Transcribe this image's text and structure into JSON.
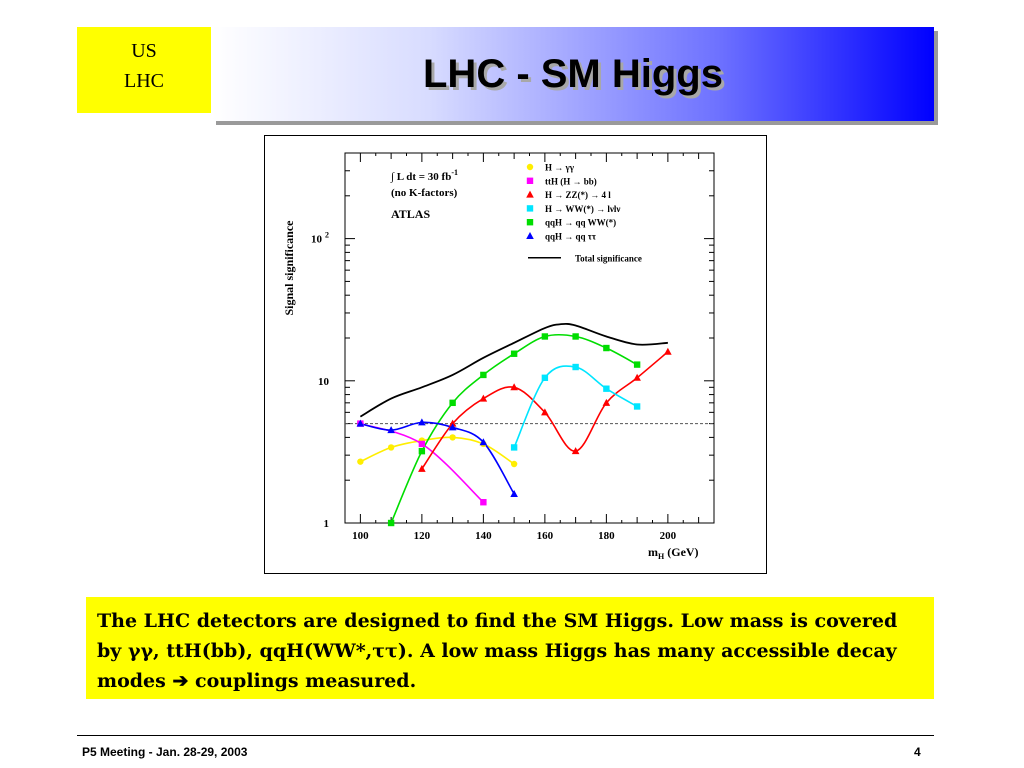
{
  "logo": {
    "line1": "US",
    "line2": "LHC"
  },
  "slide": {
    "title": "LHC -  SM Higgs"
  },
  "caption": "The LHC detectors are designed to find the SM Higgs. Low mass is covered by γγ, ttH(bb), qqH(WW*,ττ).  A low mass Higgs has many accessible decay modes ➔ couplings measured.",
  "footer": {
    "left": "P5 Meeting -  Jan. 28-29, 2003",
    "right": "4"
  },
  "chart_data": {
    "type": "line",
    "title": "",
    "xlabel": "m_H (GeV)",
    "ylabel": "Signal significance",
    "xlim": [
      95,
      215
    ],
    "ylim": [
      1,
      400
    ],
    "yscale": "log",
    "x_ticks": [
      100,
      120,
      140,
      160,
      180,
      200
    ],
    "y_tick_labels": [
      {
        "value": 1,
        "label": "1"
      },
      {
        "value": 10,
        "label": "10"
      },
      {
        "value": 100,
        "label": "10",
        "sup": "2"
      }
    ],
    "reference_line": {
      "y": 5,
      "style": "dashed"
    },
    "annotations": [
      {
        "text": "∫ L dt = 30 fb",
        "sup": "-1"
      },
      {
        "text": "(no K-factors)"
      },
      {
        "text": "ATLAS"
      }
    ],
    "legend_placement": "top-right",
    "series": [
      {
        "name": "H → γγ",
        "color": "#ffee00",
        "marker": "circle",
        "x": [
          100,
          110,
          120,
          130,
          140,
          150
        ],
        "y": [
          2.7,
          3.4,
          3.8,
          4.0,
          3.6,
          2.6
        ]
      },
      {
        "name": "ttH (H → bb)",
        "color": "#ff00ff",
        "marker": "square",
        "x": [
          100,
          120,
          140
        ],
        "y": [
          5.0,
          3.6,
          1.4
        ]
      },
      {
        "name": "H → ZZ(*) → 4 l",
        "color": "#ff0000",
        "marker": "triangle",
        "x": [
          120,
          130,
          140,
          150,
          160,
          170,
          180,
          190,
          200
        ],
        "y": [
          2.4,
          5.0,
          7.5,
          9.0,
          6.0,
          3.2,
          7.0,
          10.5,
          16.0
        ]
      },
      {
        "name": "H → WW(*) → lνlν",
        "color": "#00e5ff",
        "marker": "square",
        "x": [
          150,
          160,
          170,
          180,
          190
        ],
        "y": [
          3.4,
          10.5,
          12.5,
          8.8,
          6.6
        ]
      },
      {
        "name": "qqH → qq WW(*)",
        "color": "#00dd00",
        "marker": "square",
        "x": [
          110,
          120,
          130,
          140,
          150,
          160,
          170,
          180,
          190
        ],
        "y": [
          1.0,
          3.2,
          7.0,
          11.0,
          15.5,
          20.5,
          20.5,
          17.0,
          13.0
        ]
      },
      {
        "name": "qqH → qq ττ",
        "color": "#0000ff",
        "marker": "triangle",
        "x": [
          100,
          110,
          120,
          130,
          140,
          150
        ],
        "y": [
          5.0,
          4.5,
          5.1,
          4.7,
          3.7,
          1.6
        ]
      },
      {
        "name": "Total significance",
        "color": "#000000",
        "marker": "none",
        "x": [
          100,
          110,
          120,
          130,
          140,
          150,
          160,
          165,
          170,
          180,
          190,
          200
        ],
        "y": [
          5.6,
          7.5,
          9.0,
          11.0,
          14.5,
          18.5,
          23.5,
          25.0,
          24.5,
          20.5,
          18.0,
          18.5
        ]
      }
    ]
  }
}
